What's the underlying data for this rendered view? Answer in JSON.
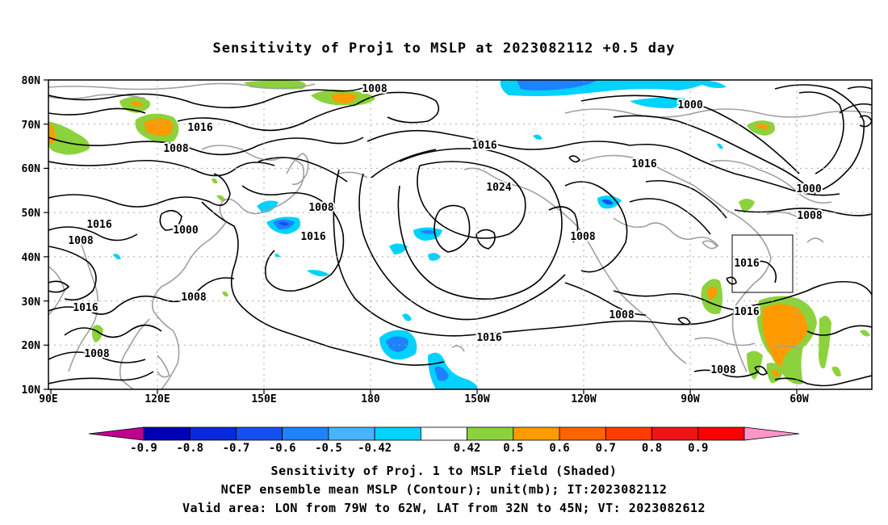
{
  "title": "Sensitivity of Proj1 to MSLP at 2023082112 +0.5 day",
  "captions": [
    "Sensitivity of Proj. 1 to MSLP field (Shaded)",
    "NCEP ensemble mean MSLP (Contour); unit(mb); IT:2023082112",
    "Valid area: LON from 79W to 62W, LAT from 32N to 45N; VT: 2023082612"
  ],
  "axes": {
    "lat_labels": [
      "80N",
      "70N",
      "60N",
      "50N",
      "40N",
      "30N",
      "20N",
      "10N"
    ],
    "lon_labels": [
      "90E",
      "120E",
      "150E",
      "180",
      "150W",
      "120W",
      "90W",
      "60W"
    ]
  },
  "colorbar": {
    "labels": [
      "-0.9",
      "-0.8",
      "-0.7",
      "-0.6",
      "-0.5",
      "-0.42",
      "0.42",
      "0.5",
      "0.6",
      "0.7",
      "0.8",
      "0.9"
    ],
    "colors": [
      "#c00090",
      "#0000b4",
      "#0a28dc",
      "#1450f0",
      "#1e82ff",
      "#46b4ff",
      "#00d2ff",
      "#ffffff",
      "#8cd23c",
      "#ff9b00",
      "#ff6400",
      "#ff3c00",
      "#f01414",
      "#ff0000",
      "#ff96c8"
    ]
  },
  "contour_labels": [
    "1008",
    "1016",
    "1008",
    "1016",
    "1000",
    "1008",
    "1016",
    "1008",
    "1008",
    "1016",
    "1016",
    "1024",
    "1016",
    "1016",
    "1008",
    "1008",
    "1016",
    "1000",
    "1000",
    "1008",
    "1016",
    "1016",
    "1008",
    "1008"
  ],
  "valid_area": {
    "lon_from": "79W",
    "lon_to": "62W",
    "lat_from": "32N",
    "lat_to": "45N"
  },
  "shading_colors": {
    "green": "#8cd23c",
    "orange": "#ff9b00",
    "lightblue": "#00d2ff",
    "blue": "#1e82ff",
    "darkblue": "#1450f0"
  }
}
